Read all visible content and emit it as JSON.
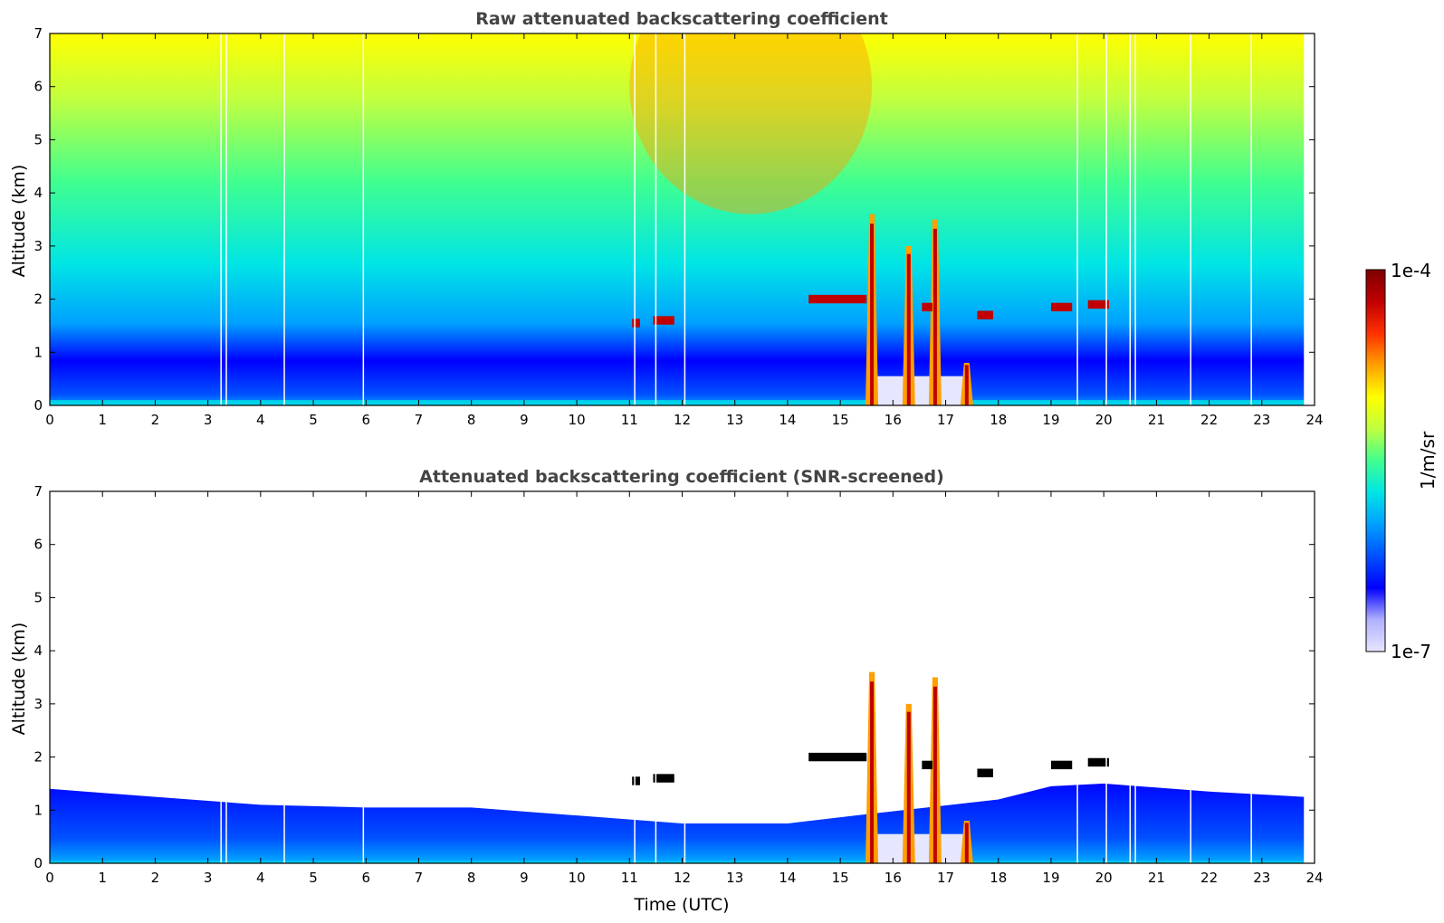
{
  "colors": {
    "colormap": [
      "#ffffff",
      "#e6e6ff",
      "#b0b0ff",
      "#0000ff",
      "#0050ff",
      "#00a0ff",
      "#00e5e5",
      "#40ff90",
      "#c0ff40",
      "#ffff00",
      "#ffa000",
      "#ff3000",
      "#c00000",
      "#800000"
    ],
    "cloud_black": "#000000",
    "title_color": "#444444"
  },
  "colorbar": {
    "max_label": "1e-4",
    "min_label": "1e-7",
    "units_label": "1/m/sr",
    "scale": "log"
  },
  "chart_data": [
    {
      "type": "heatmap",
      "title": "Raw attenuated backscattering coefficient",
      "xlabel": "",
      "ylabel": "Altitude (km)",
      "xlim": [
        0,
        24
      ],
      "ylim": [
        0,
        7
      ],
      "xticks": [
        "0",
        "1",
        "2",
        "3",
        "4",
        "5",
        "6",
        "7",
        "8",
        "9",
        "10",
        "11",
        "12",
        "13",
        "14",
        "15",
        "16",
        "17",
        "18",
        "19",
        "20",
        "21",
        "22",
        "23",
        "24"
      ],
      "yticks": [
        "0",
        "1",
        "2",
        "3",
        "4",
        "5",
        "6",
        "7"
      ],
      "data_end_time": 23.8,
      "gap_lines_utc": [
        3.25,
        3.35,
        4.45,
        5.95,
        11.1,
        11.5,
        12.05,
        19.5,
        20.05,
        20.5,
        20.6,
        21.65,
        22.8
      ],
      "features": {
        "boundary_layer_top_km": 0.9,
        "cloud_layer_km": [
          {
            "from": 14.4,
            "to": 15.5,
            "alt": 2.0
          },
          {
            "from": 16.55,
            "to": 16.75,
            "alt": 1.85
          },
          {
            "from": 17.6,
            "to": 17.9,
            "alt": 1.7
          },
          {
            "from": 19.0,
            "to": 19.4,
            "alt": 1.85
          },
          {
            "from": 19.7,
            "to": 20.1,
            "alt": 1.9
          },
          {
            "from": 11.05,
            "to": 11.2,
            "alt": 1.55
          },
          {
            "from": 11.45,
            "to": 11.85,
            "alt": 1.6
          }
        ],
        "precipitation_columns": [
          {
            "t": 15.6,
            "top": 3.6
          },
          {
            "t": 16.3,
            "top": 3.0
          },
          {
            "t": 16.8,
            "top": 3.5
          },
          {
            "t": 17.4,
            "top": 0.8
          }
        ],
        "attenuated_region_utc": [
          15.7,
          17.4
        ]
      }
    },
    {
      "type": "heatmap",
      "title": "Attenuated backscattering coefficient (SNR-screened)",
      "xlabel": "Time (UTC)",
      "ylabel": "Altitude (km)",
      "xlim": [
        0,
        24
      ],
      "ylim": [
        0,
        7
      ],
      "xticks": [
        "0",
        "1",
        "2",
        "3",
        "4",
        "5",
        "6",
        "7",
        "8",
        "9",
        "10",
        "11",
        "12",
        "13",
        "14",
        "15",
        "16",
        "17",
        "18",
        "19",
        "20",
        "21",
        "22",
        "23",
        "24"
      ],
      "yticks": [
        "0",
        "1",
        "2",
        "3",
        "4",
        "5",
        "6",
        "7"
      ],
      "data_end_time": 23.8,
      "screened_top_km": [
        [
          0,
          1.4
        ],
        [
          2,
          1.25
        ],
        [
          4,
          1.1
        ],
        [
          6,
          1.05
        ],
        [
          8,
          1.05
        ],
        [
          10,
          0.9
        ],
        [
          12,
          0.75
        ],
        [
          14,
          0.75
        ],
        [
          15.3,
          0.9
        ],
        [
          18,
          1.2
        ],
        [
          19,
          1.45
        ],
        [
          20,
          1.5
        ],
        [
          22,
          1.35
        ],
        [
          23.8,
          1.25
        ]
      ]
    }
  ]
}
